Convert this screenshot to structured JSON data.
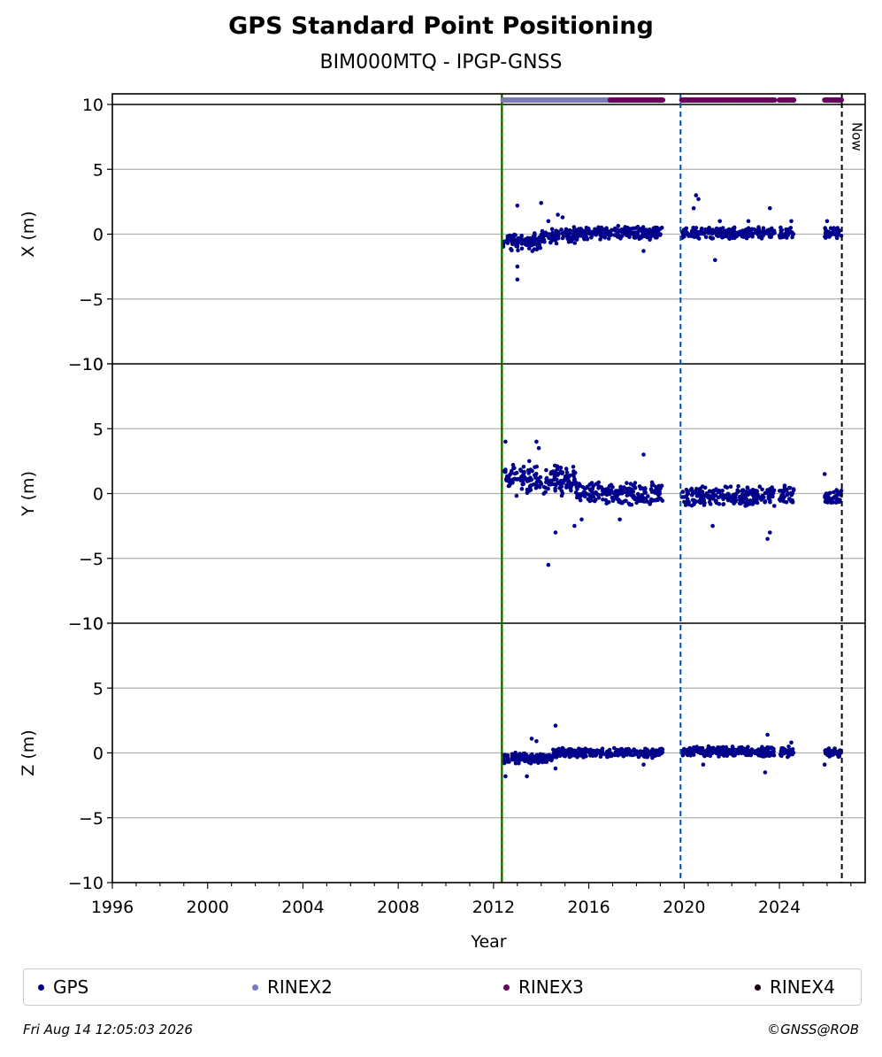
{
  "title": "GPS Standard Point Positioning",
  "subtitle": "BIM000MTQ - IPGP-GNSS",
  "footer": {
    "timestamp": "Fri Aug 14 12:05:03 2026",
    "credit": "©GNSS@ROB"
  },
  "colors": {
    "gps": "#00008b",
    "rinex2": "#7b7bb8",
    "rinex3": "#6a005f",
    "rinex4": "#1a0010",
    "event_green": "#008000",
    "event_red": "#d00000",
    "event_blue": "#0050b0",
    "now": "#000000"
  },
  "legend": [
    {
      "label": "GPS",
      "color": "#00008b"
    },
    {
      "label": "RINEX2",
      "color": "#7b7bb8"
    },
    {
      "label": "RINEX3",
      "color": "#6a005f"
    },
    {
      "label": "RINEX4",
      "color": "#1a0010"
    }
  ],
  "chart_data": {
    "type": "scatter",
    "xlabel": "Year",
    "xlim": [
      1996,
      2027.6
    ],
    "xticks": [
      1996,
      2000,
      2004,
      2008,
      2012,
      2016,
      2020,
      2024
    ],
    "ylim": [
      -10,
      10
    ],
    "yticks": [
      -10,
      -5,
      0,
      5,
      10
    ],
    "grid": "horizontal",
    "legend_position": "bottom",
    "events": [
      {
        "x": 2012.35,
        "style": "green-red-dashed"
      },
      {
        "x": 2019.85,
        "style": "blue-dashed"
      },
      {
        "x": 2026.62,
        "style": "black-dashed",
        "label": "Now"
      }
    ],
    "availability": [
      {
        "series": "RINEX2",
        "ranges": [
          [
            2012.4,
            2016.9
          ]
        ]
      },
      {
        "series": "RINEX3",
        "ranges": [
          [
            2016.9,
            2019.1
          ],
          [
            2019.9,
            2021.7
          ],
          [
            2021.7,
            2023.8
          ],
          [
            2024.0,
            2024.6
          ],
          [
            2025.9,
            2026.6
          ]
        ]
      }
    ],
    "panels": [
      {
        "ylabel": "X (m)",
        "segments": [
          {
            "x": [
              2012.4,
              2014.0
            ],
            "center": -0.6,
            "spread": 0.6
          },
          {
            "x": [
              2014.0,
              2015.5
            ],
            "center": -0.1,
            "spread": 0.5
          },
          {
            "x": [
              2015.5,
              2019.1
            ],
            "center": 0.1,
            "spread": 0.4
          },
          {
            "x": [
              2019.9,
              2023.8
            ],
            "center": 0.1,
            "spread": 0.35
          },
          {
            "x": [
              2024.0,
              2024.6
            ],
            "center": 0.1,
            "spread": 0.35
          },
          {
            "x": [
              2025.9,
              2026.6
            ],
            "center": 0.1,
            "spread": 0.35
          }
        ],
        "outliers": [
          [
            2013.0,
            2.2
          ],
          [
            2014.0,
            2.4
          ],
          [
            2014.3,
            1.0
          ],
          [
            2014.7,
            1.5
          ],
          [
            2014.9,
            1.3
          ],
          [
            2013.0,
            -2.5
          ],
          [
            2013.0,
            -3.5
          ],
          [
            2018.3,
            -1.3
          ],
          [
            2020.5,
            3.0
          ],
          [
            2020.6,
            2.7
          ],
          [
            2020.4,
            2.0
          ],
          [
            2021.3,
            -2.0
          ],
          [
            2023.6,
            2.0
          ],
          [
            2024.5,
            1.0
          ],
          [
            2022.7,
            1.0
          ],
          [
            2021.5,
            1.0
          ],
          [
            2026.0,
            1.0
          ]
        ]
      },
      {
        "ylabel": "Y (m)",
        "segments": [
          {
            "x": [
              2012.4,
              2015.5
            ],
            "center": 1.0,
            "spread": 0.9
          },
          {
            "x": [
              2015.5,
              2019.1
            ],
            "center": 0.0,
            "spread": 0.7
          },
          {
            "x": [
              2019.9,
              2023.8
            ],
            "center": -0.2,
            "spread": 0.6
          },
          {
            "x": [
              2024.0,
              2024.6
            ],
            "center": 0.0,
            "spread": 0.6
          },
          {
            "x": [
              2025.9,
              2026.6
            ],
            "center": -0.3,
            "spread": 0.5
          }
        ],
        "outliers": [
          [
            2012.5,
            4.0
          ],
          [
            2013.8,
            4.0
          ],
          [
            2013.9,
            3.5
          ],
          [
            2013.5,
            2.5
          ],
          [
            2014.3,
            -5.5
          ],
          [
            2014.6,
            -3.0
          ],
          [
            2015.4,
            -2.5
          ],
          [
            2015.7,
            -2.0
          ],
          [
            2017.3,
            -2.0
          ],
          [
            2018.3,
            3.0
          ],
          [
            2021.2,
            -2.5
          ],
          [
            2023.6,
            -3.0
          ],
          [
            2023.5,
            -3.5
          ],
          [
            2025.9,
            1.5
          ]
        ]
      },
      {
        "ylabel": "Z (m)",
        "segments": [
          {
            "x": [
              2012.4,
              2014.5
            ],
            "center": -0.4,
            "spread": 0.35
          },
          {
            "x": [
              2014.5,
              2019.1
            ],
            "center": 0.0,
            "spread": 0.3
          },
          {
            "x": [
              2019.9,
              2023.8
            ],
            "center": 0.1,
            "spread": 0.3
          },
          {
            "x": [
              2024.0,
              2024.6
            ],
            "center": 0.1,
            "spread": 0.3
          },
          {
            "x": [
              2025.9,
              2026.6
            ],
            "center": 0.0,
            "spread": 0.3
          }
        ],
        "outliers": [
          [
            2012.5,
            -1.8
          ],
          [
            2013.4,
            -1.8
          ],
          [
            2013.6,
            1.1
          ],
          [
            2013.8,
            0.9
          ],
          [
            2014.6,
            2.1
          ],
          [
            2014.6,
            -1.2
          ],
          [
            2018.3,
            -0.9
          ],
          [
            2020.8,
            -0.9
          ],
          [
            2023.5,
            1.4
          ],
          [
            2023.4,
            -1.5
          ],
          [
            2024.5,
            0.8
          ],
          [
            2025.9,
            -0.9
          ]
        ]
      }
    ]
  }
}
